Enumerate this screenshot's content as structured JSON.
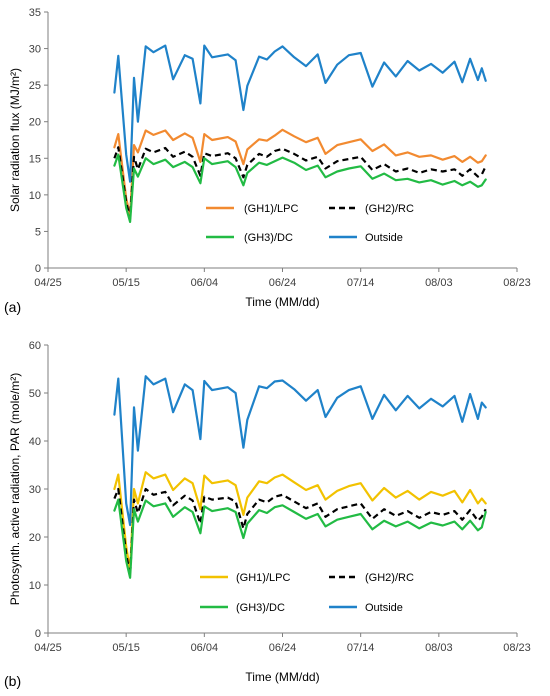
{
  "chart_data": [
    {
      "type": "line",
      "panel_tag": "(a)",
      "xlabel": "Time (MM/dd)",
      "ylabel": "Solar radiation flux (MJ/m²)",
      "x_ticks": [
        "04/25",
        "05/15",
        "06/04",
        "06/24",
        "07/14",
        "08/03",
        "08/23"
      ],
      "xlim": [
        "04/25",
        "08/23"
      ],
      "ylim": [
        0,
        35
      ],
      "y_ticks": [
        0,
        5,
        10,
        15,
        20,
        25,
        30,
        35
      ],
      "grid": false,
      "legend_placement": "center-right",
      "x": [
        "05/12",
        "05/13",
        "05/15",
        "05/16",
        "05/17",
        "05/18",
        "05/20",
        "05/22",
        "05/25",
        "05/27",
        "05/30",
        "06/01",
        "06/03",
        "06/04",
        "06/06",
        "06/10",
        "06/12",
        "06/14",
        "06/15",
        "06/18",
        "06/20",
        "06/22",
        "06/24",
        "06/27",
        "06/30",
        "07/03",
        "07/05",
        "07/08",
        "07/11",
        "07/14",
        "07/17",
        "07/20",
        "07/23",
        "07/26",
        "07/29",
        "08/01",
        "08/04",
        "08/07",
        "08/09",
        "08/11",
        "08/13",
        "08/14",
        "08/15"
      ],
      "series": [
        {
          "name": "(GH1)/LPC",
          "color": "#f28a30",
          "dash": "solid",
          "values": [
            16.5,
            18.3,
            9.5,
            7.2,
            16.8,
            15.8,
            18.8,
            18.2,
            18.8,
            17.5,
            18.4,
            17.8,
            14.5,
            18.3,
            17.5,
            17.9,
            17.3,
            14.2,
            16.2,
            17.6,
            17.4,
            18.1,
            18.9,
            18.0,
            17.2,
            17.8,
            15.6,
            16.8,
            17.2,
            17.6,
            16.0,
            16.9,
            15.4,
            15.8,
            15.2,
            15.4,
            14.8,
            15.3,
            14.5,
            15.2,
            14.4,
            14.6,
            15.4
          ]
        },
        {
          "name": "(GH2)/RC",
          "color": "#000000",
          "dash": "dashed",
          "values": [
            15.0,
            16.5,
            9.0,
            6.8,
            15.2,
            13.5,
            16.3,
            15.8,
            16.4,
            15.2,
            15.9,
            15.2,
            12.6,
            15.7,
            15.3,
            15.7,
            15.0,
            12.4,
            14.1,
            15.6,
            15.2,
            16.0,
            16.3,
            15.6,
            14.7,
            15.2,
            13.6,
            14.6,
            14.9,
            15.2,
            13.4,
            14.2,
            13.2,
            13.6,
            13.0,
            13.5,
            13.2,
            13.5,
            12.6,
            13.5,
            12.5,
            12.8,
            13.9
          ]
        },
        {
          "name": "(GH3)/DC",
          "color": "#22bb44",
          "dash": "solid",
          "values": [
            14.0,
            15.5,
            8.2,
            6.3,
            13.6,
            12.5,
            15.0,
            14.2,
            14.8,
            13.8,
            14.5,
            13.8,
            11.6,
            15.0,
            14.2,
            14.6,
            13.8,
            11.3,
            13.0,
            14.4,
            14.1,
            14.6,
            15.1,
            14.4,
            13.4,
            14.0,
            12.4,
            13.2,
            13.6,
            13.9,
            12.2,
            12.9,
            12.0,
            12.2,
            11.7,
            12.0,
            11.4,
            11.9,
            11.3,
            11.8,
            11.1,
            11.3,
            12.1
          ]
        },
        {
          "name": "Outside",
          "color": "#1f82c9",
          "dash": "solid",
          "values": [
            24.0,
            29.0,
            15.5,
            11.8,
            26.0,
            20.0,
            30.3,
            29.5,
            30.4,
            25.8,
            29.1,
            28.6,
            22.5,
            30.4,
            28.8,
            29.2,
            28.4,
            21.6,
            24.9,
            28.9,
            28.5,
            29.6,
            30.3,
            28.8,
            27.6,
            29.2,
            25.3,
            27.8,
            29.1,
            29.4,
            24.8,
            28.1,
            26.2,
            28.3,
            27.0,
            27.9,
            26.7,
            28.2,
            25.4,
            28.6,
            25.7,
            27.3,
            25.6
          ]
        }
      ]
    },
    {
      "type": "line",
      "panel_tag": "(b)",
      "xlabel": "Time (MM/dd)",
      "ylabel": "Photosynth. active radiation, PAR (mole/m²)",
      "x_ticks": [
        "04/25",
        "05/15",
        "06/04",
        "06/24",
        "07/14",
        "08/03",
        "08/23"
      ],
      "xlim": [
        "04/25",
        "08/23"
      ],
      "ylim": [
        0,
        60
      ],
      "y_ticks": [
        0,
        10,
        20,
        30,
        40,
        50,
        60
      ],
      "grid": false,
      "legend_placement": "bottom-center",
      "x": [
        "05/12",
        "05/13",
        "05/15",
        "05/16",
        "05/17",
        "05/18",
        "05/20",
        "05/22",
        "05/25",
        "05/27",
        "05/30",
        "06/01",
        "06/03",
        "06/04",
        "06/06",
        "06/10",
        "06/12",
        "06/14",
        "06/15",
        "06/18",
        "06/20",
        "06/22",
        "06/24",
        "06/27",
        "06/30",
        "07/03",
        "07/05",
        "07/08",
        "07/11",
        "07/14",
        "07/17",
        "07/20",
        "07/23",
        "07/26",
        "07/29",
        "08/01",
        "08/04",
        "08/07",
        "08/09",
        "08/11",
        "08/13",
        "08/14",
        "08/15"
      ],
      "series": [
        {
          "name": "(GH1)/LPC",
          "color": "#f2c200",
          "dash": "solid",
          "values": [
            30.0,
            33.0,
            18.0,
            13.0,
            30.0,
            27.0,
            33.5,
            32.2,
            33.0,
            29.8,
            32.2,
            31.2,
            25.8,
            32.8,
            31.2,
            31.8,
            30.8,
            24.6,
            28.2,
            31.6,
            31.2,
            32.4,
            33.0,
            31.4,
            29.8,
            30.8,
            27.8,
            29.6,
            30.6,
            31.2,
            27.6,
            30.2,
            28.2,
            29.6,
            27.8,
            29.4,
            28.6,
            29.6,
            27.2,
            29.8,
            27.0,
            28.0,
            27.0
          ]
        },
        {
          "name": "(GH2)/RC",
          "color": "#000000",
          "dash": "dashed",
          "values": [
            28.0,
            30.0,
            16.5,
            12.0,
            27.8,
            25.0,
            30.0,
            28.8,
            29.4,
            26.6,
            28.6,
            27.6,
            22.8,
            28.4,
            27.8,
            28.2,
            27.4,
            21.8,
            24.8,
            27.8,
            27.2,
            28.4,
            28.8,
            27.4,
            26.0,
            27.0,
            24.2,
            25.8,
            26.4,
            27.0,
            23.8,
            25.8,
            24.4,
            25.4,
            24.0,
            25.2,
            24.6,
            25.4,
            23.6,
            25.6,
            23.4,
            24.2,
            25.8
          ]
        },
        {
          "name": "(GH3)/DC",
          "color": "#22bb44",
          "dash": "solid",
          "values": [
            25.5,
            27.8,
            15.0,
            11.5,
            25.8,
            23.2,
            27.6,
            26.4,
            27.0,
            24.2,
            26.2,
            25.2,
            20.8,
            26.4,
            25.4,
            26.0,
            25.2,
            19.8,
            22.8,
            25.6,
            25.0,
            26.2,
            26.6,
            25.2,
            23.8,
            24.8,
            22.2,
            23.6,
            24.2,
            24.8,
            21.6,
            23.4,
            22.2,
            23.2,
            21.8,
            23.0,
            22.4,
            23.2,
            21.6,
            23.4,
            21.4,
            22.0,
            25.2
          ]
        },
        {
          "name": "Outside",
          "color": "#1f82c9",
          "dash": "solid",
          "values": [
            45.5,
            53.0,
            27.0,
            22.5,
            47.0,
            38.0,
            53.5,
            51.8,
            53.0,
            46.0,
            51.8,
            50.6,
            40.4,
            52.5,
            50.6,
            51.2,
            50.0,
            38.6,
            44.4,
            51.4,
            51.0,
            52.4,
            52.6,
            50.8,
            48.4,
            50.6,
            45.0,
            49.0,
            50.6,
            51.4,
            44.6,
            49.6,
            46.4,
            49.4,
            46.8,
            48.8,
            47.2,
            49.4,
            44.0,
            49.8,
            44.6,
            48.0,
            47.0
          ]
        }
      ]
    }
  ]
}
